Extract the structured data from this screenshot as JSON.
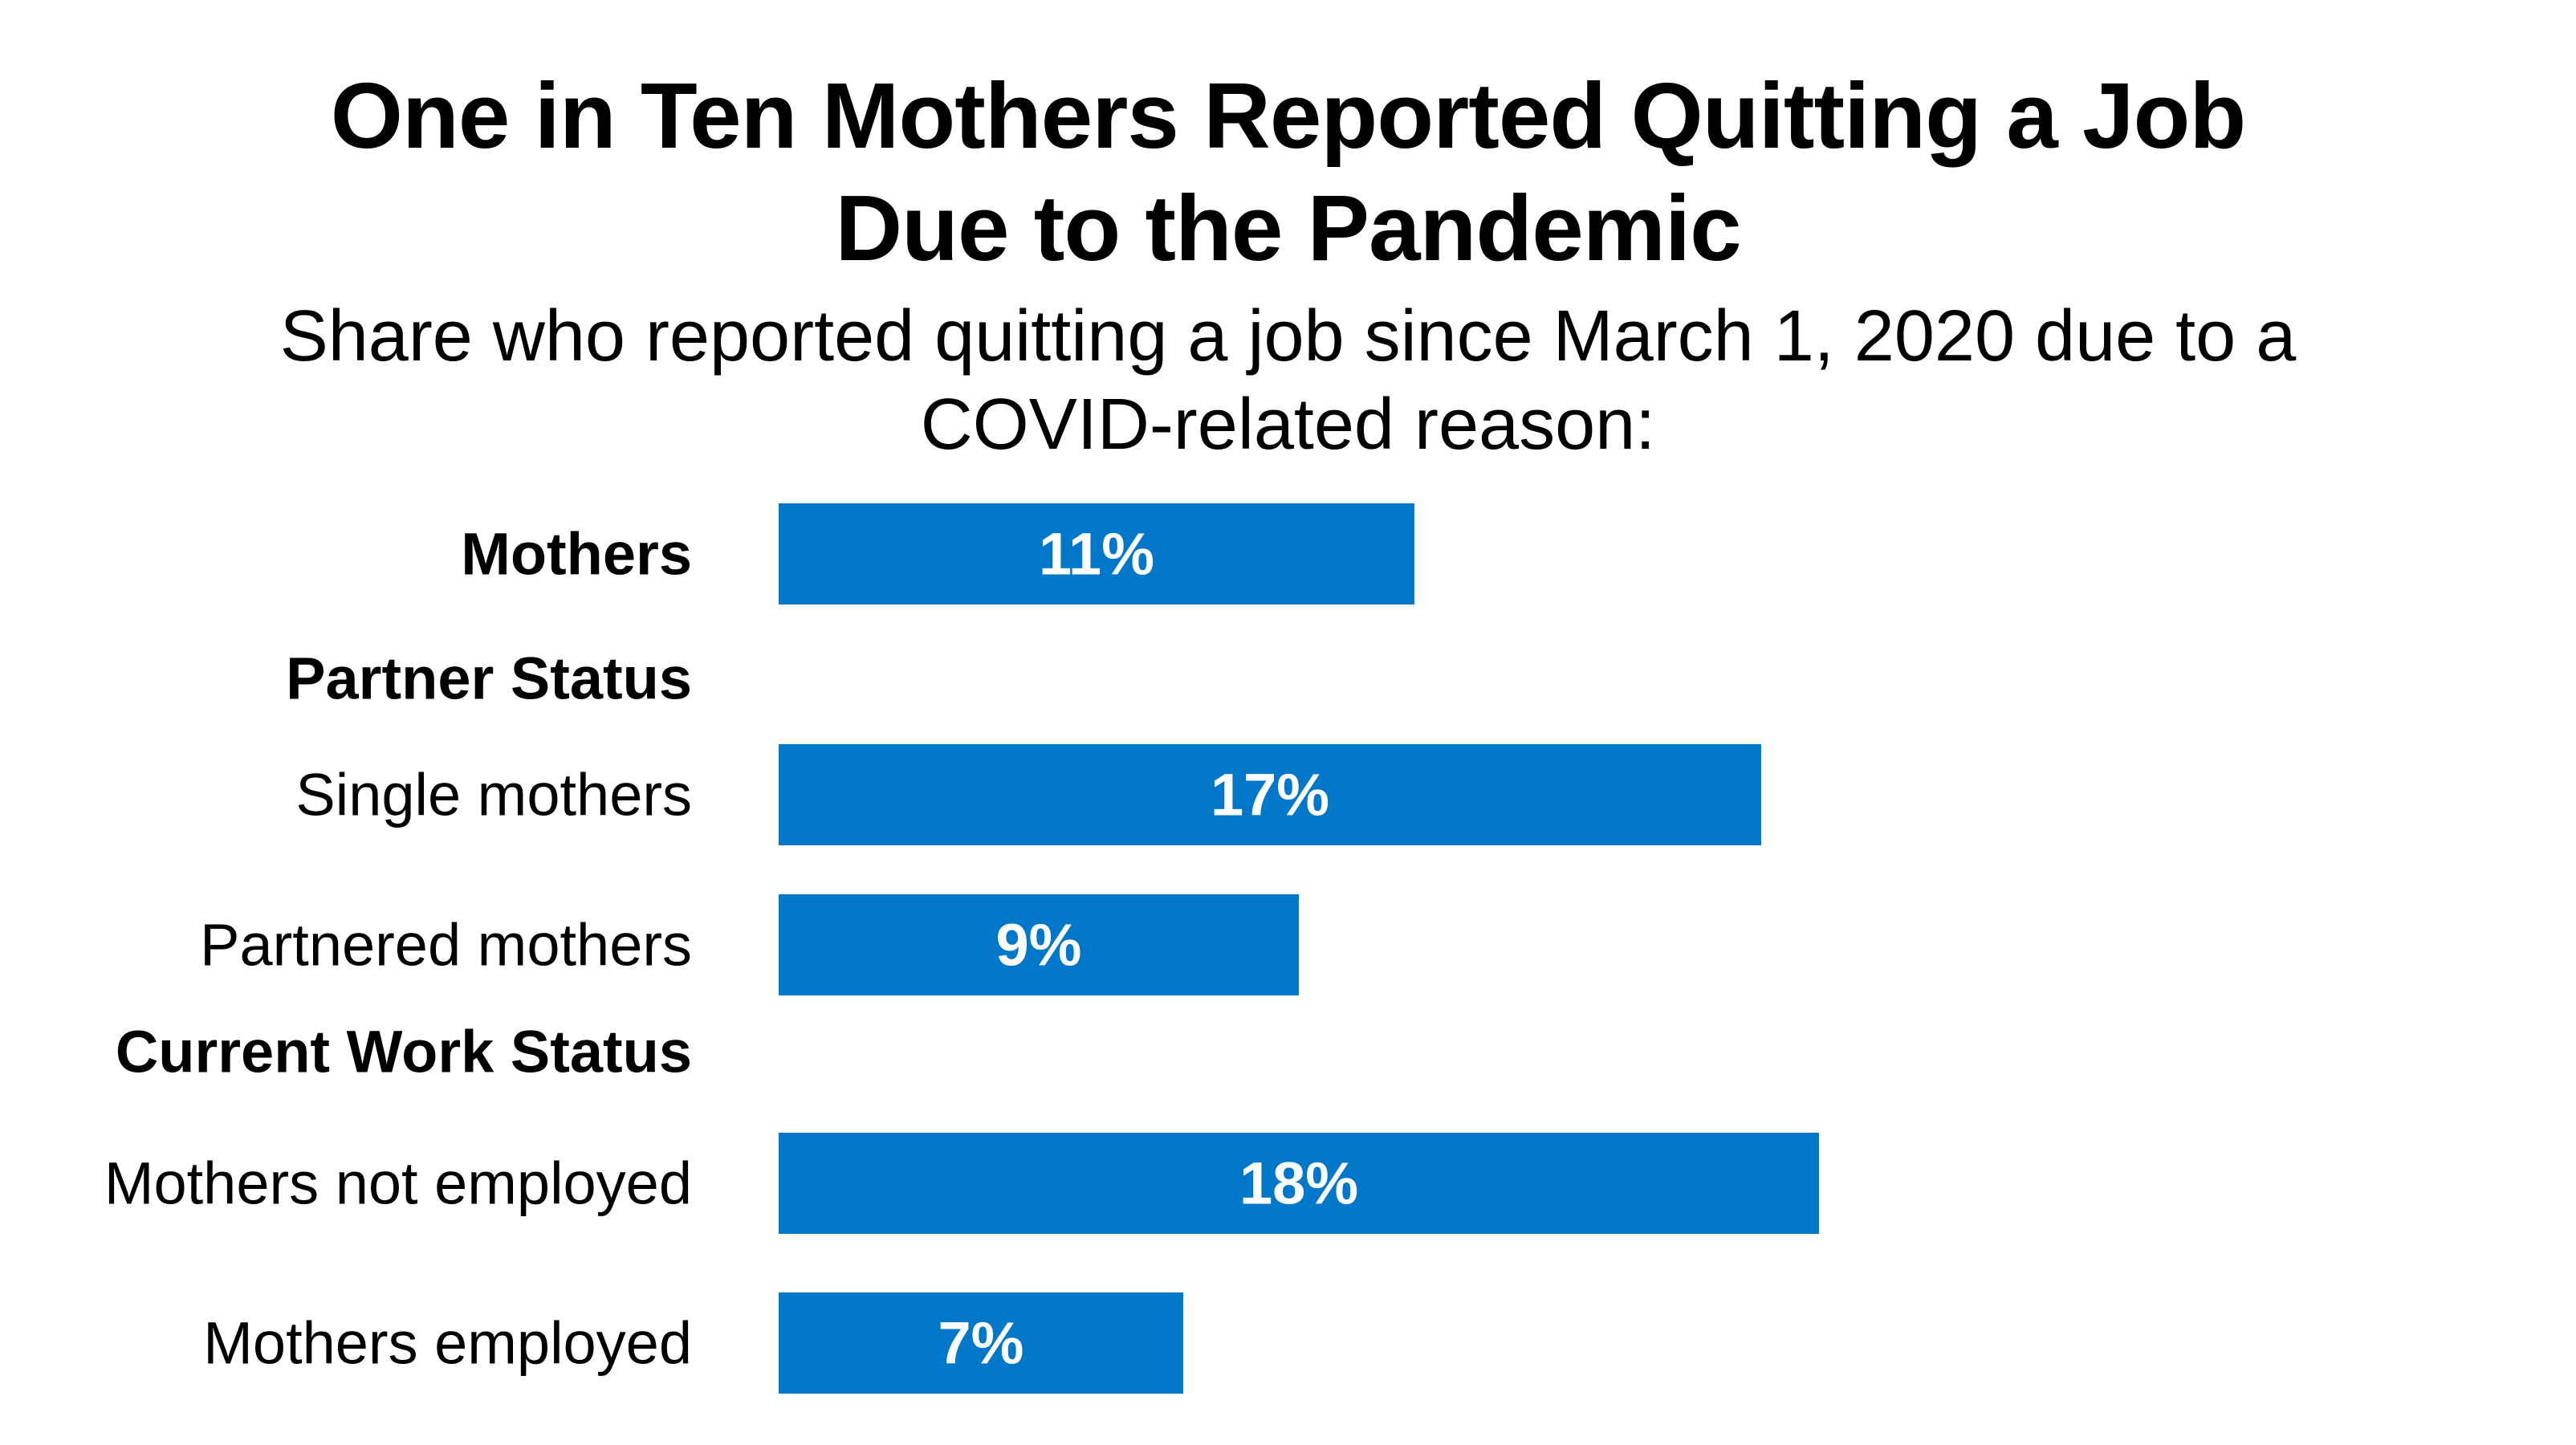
{
  "chart_data": {
    "type": "bar",
    "orientation": "horizontal",
    "title": [
      "One in Ten Mothers Reported Quitting a Job",
      "Due to the Pandemic"
    ],
    "subtitle": [
      "Share who reported quitting a job since March 1, 2020 due to a",
      "COVID-related reason:"
    ],
    "bar_color": "#0077C8",
    "value_label_color": "#FFFFFF",
    "rows": [
      {
        "label": "Mothers",
        "kind": "heading",
        "value": 11,
        "value_label": "11%"
      },
      {
        "label": "Partner Status",
        "kind": "heading"
      },
      {
        "label": "Single mothers",
        "kind": "category",
        "value": 17,
        "value_label": "17%"
      },
      {
        "label": "Partnered mothers",
        "kind": "category",
        "value": 9,
        "value_label": "9%"
      },
      {
        "label": "Current Work Status",
        "kind": "heading"
      },
      {
        "label": "Mothers not employed",
        "kind": "category",
        "value": 18,
        "value_label": "18%"
      },
      {
        "label": "Mothers employed",
        "kind": "category",
        "value": 7,
        "value_label": "7%"
      }
    ]
  }
}
